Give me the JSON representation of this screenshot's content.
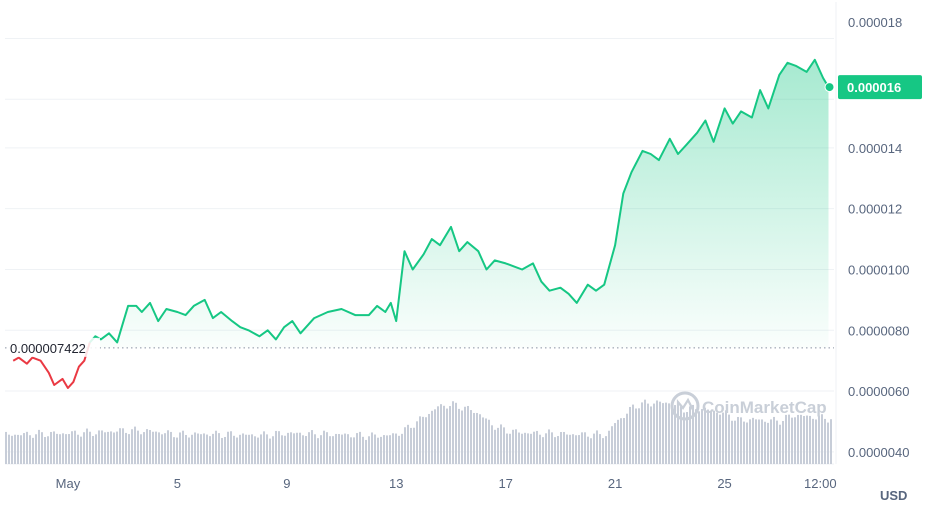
{
  "chart_data": {
    "type": "line",
    "currency": "USD",
    "reference_value_label": "0.000007422",
    "reference_value": 7.422e-06,
    "last_value_label": "0.000016",
    "last_value": 1.6e-05,
    "y_ticks": [
      "0.000018",
      "0.000014",
      "0.000012",
      "0.0000100",
      "0.0000080",
      "0.0000060",
      "0.0000040"
    ],
    "y_tick_values": [
      1.8e-05,
      1.4e-05,
      1.2e-05,
      1e-05,
      8e-06,
      6e-06,
      4e-06
    ],
    "ylim": [
      3.6e-06,
      1.88e-05
    ],
    "x_ticks": [
      "May",
      "5",
      "9",
      "13",
      "17",
      "21",
      "25",
      "12:00"
    ],
    "x_tick_days": [
      1.0,
      5.0,
      9.0,
      13.0,
      17.0,
      21.0,
      25.0,
      28.5
    ],
    "xlim": [
      -1.3,
      29.0
    ],
    "colors": {
      "up": "#16c784",
      "down": "#ea3943",
      "volume": "#c7cdd8",
      "grid": "#eff2f5"
    },
    "price_series": {
      "x": [
        -1.0,
        -0.8,
        -0.5,
        -0.3,
        0.0,
        0.3,
        0.5,
        0.8,
        1.0,
        1.2,
        1.4,
        1.6,
        1.8,
        2.0,
        2.2,
        2.5,
        2.8,
        3.0,
        3.2,
        3.5,
        3.7,
        4.0,
        4.3,
        4.6,
        5.0,
        5.3,
        5.6,
        6.0,
        6.3,
        6.6,
        7.0,
        7.3,
        7.6,
        8.0,
        8.3,
        8.6,
        8.9,
        9.2,
        9.5,
        10.0,
        10.5,
        11.0,
        11.5,
        12.0,
        12.3,
        12.6,
        12.8,
        13.0,
        13.3,
        13.6,
        14.0,
        14.3,
        14.6,
        15.0,
        15.3,
        15.6,
        16.0,
        16.3,
        16.6,
        17.0,
        17.3,
        17.6,
        18.0,
        18.3,
        18.6,
        19.0,
        19.3,
        19.6,
        20.0,
        20.3,
        20.6,
        21.0,
        21.3,
        21.6,
        22.0,
        22.3,
        22.6,
        23.0,
        23.3,
        23.6,
        24.0,
        24.3,
        24.6,
        25.0,
        25.3,
        25.6,
        26.0,
        26.3,
        26.6,
        27.0,
        27.3,
        27.6,
        28.0,
        28.3,
        28.6,
        28.8
      ],
      "y": [
        7.0,
        7.1,
        6.9,
        7.1,
        7.0,
        6.6,
        6.2,
        6.4,
        6.1,
        6.3,
        6.8,
        7.0,
        7.6,
        7.8,
        7.7,
        7.9,
        7.6,
        8.2,
        8.8,
        8.8,
        8.6,
        8.9,
        8.3,
        8.7,
        8.6,
        8.5,
        8.8,
        9.0,
        8.4,
        8.6,
        8.3,
        8.1,
        8.0,
        7.8,
        8.0,
        7.7,
        8.1,
        8.3,
        7.9,
        8.4,
        8.6,
        8.7,
        8.5,
        8.5,
        8.8,
        8.6,
        8.9,
        8.3,
        10.6,
        10.0,
        10.5,
        11.0,
        10.8,
        11.4,
        10.6,
        10.9,
        10.6,
        10.0,
        10.3,
        10.2,
        10.1,
        10.0,
        10.2,
        9.6,
        9.3,
        9.4,
        9.2,
        8.9,
        9.5,
        9.3,
        9.5,
        10.8,
        12.5,
        13.2,
        13.9,
        13.8,
        13.6,
        14.3,
        13.8,
        14.1,
        14.5,
        14.9,
        14.2,
        15.3,
        14.8,
        15.2,
        15.0,
        15.9,
        15.3,
        16.4,
        16.8,
        16.7,
        16.5,
        16.9,
        16.3,
        16.0
      ]
    },
    "volume_series": {
      "x": [
        -1.0,
        0.0,
        1.0,
        2.0,
        3.0,
        4.0,
        5.0,
        6.0,
        7.0,
        8.0,
        9.0,
        10.0,
        11.0,
        12.0,
        12.8,
        13.2,
        13.6,
        14.0,
        14.5,
        15.0,
        15.5,
        16.0,
        16.5,
        17.0,
        17.5,
        18.0,
        19.0,
        20.0,
        20.7,
        21.0,
        21.3,
        21.6,
        22.0,
        22.5,
        23.0,
        23.5,
        24.0,
        24.5,
        25.0,
        25.5,
        26.0,
        26.5,
        27.0,
        27.5,
        28.0,
        28.5,
        28.8
      ],
      "y": [
        0.42,
        0.43,
        0.44,
        0.45,
        0.48,
        0.47,
        0.42,
        0.43,
        0.42,
        0.41,
        0.44,
        0.43,
        0.42,
        0.4,
        0.41,
        0.46,
        0.57,
        0.68,
        0.82,
        0.85,
        0.8,
        0.72,
        0.55,
        0.48,
        0.45,
        0.44,
        0.43,
        0.42,
        0.42,
        0.62,
        0.68,
        0.82,
        0.86,
        0.88,
        0.87,
        0.78,
        0.8,
        0.76,
        0.72,
        0.62,
        0.64,
        0.62,
        0.62,
        0.7,
        0.68,
        0.66,
        0.65
      ]
    }
  },
  "watermark": "CoinMarketCap"
}
